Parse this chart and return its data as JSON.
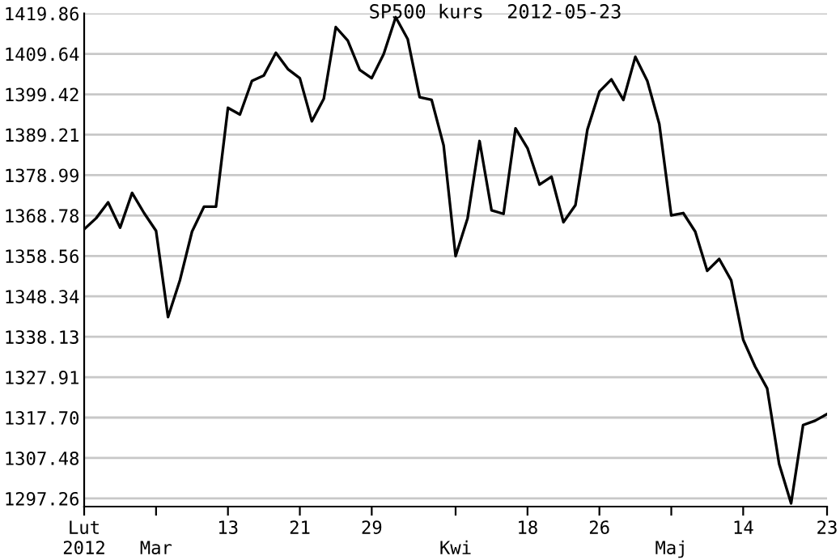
{
  "chart_data": {
    "type": "line",
    "title": "SP500 kurs  2012-05-23",
    "categories": [
      "Lut\n2012",
      null,
      null,
      null,
      null,
      null,
      "\nMar",
      null,
      null,
      null,
      null,
      null,
      "13",
      null,
      null,
      null,
      null,
      null,
      "21",
      null,
      null,
      null,
      null,
      null,
      "29",
      null,
      null,
      null,
      null,
      null,
      null,
      "\nKwi",
      null,
      null,
      null,
      null,
      null,
      "18",
      null,
      null,
      null,
      null,
      null,
      "26",
      null,
      null,
      null,
      null,
      null,
      "\nMaj",
      null,
      null,
      null,
      null,
      null,
      "14",
      null,
      null,
      null,
      null,
      null,
      null,
      "23"
    ],
    "series": [
      {
        "color": "#000000",
        "values": [
          1365.3,
          1368.1,
          1372.1,
          1365.7,
          1374.5,
          1369.4,
          1364.9,
          1343.1,
          1352.5,
          1364.7,
          1371.0,
          1371.0,
          1396.0,
          1394.3,
          1402.8,
          1404.2,
          1409.9,
          1405.8,
          1403.5,
          1392.6,
          1398.3,
          1416.4,
          1413.0,
          1405.6,
          1403.5,
          1409.6,
          1418.9,
          1413.4,
          1398.7,
          1398.0,
          1386.5,
          1358.5,
          1368.1,
          1387.6,
          1370.1,
          1369.2,
          1390.8,
          1385.8,
          1376.6,
          1378.6,
          1367.1,
          1371.4,
          1390.5,
          1400.1,
          1403.2,
          1398.0,
          1408.9,
          1402.8,
          1391.9,
          1368.8,
          1369.4,
          1364.7,
          1354.8,
          1357.8,
          1352.4,
          1337.4,
          1330.6,
          1325.1,
          1306.0,
          1296.0,
          1315.8,
          1316.9,
          1318.6
        ]
      }
    ],
    "ylim": [
      1295.2,
      1419.86
    ],
    "yticks": [
      1297.26,
      1307.48,
      {
        "value": 1317.7,
        "label": "1317.70"
      },
      1327.91,
      1338.13,
      1348.34,
      1358.56,
      1368.78,
      1378.99,
      1389.21,
      1399.42,
      1409.64,
      1419.86
    ],
    "grid": "y",
    "marker": "none",
    "line_style": "solid"
  }
}
